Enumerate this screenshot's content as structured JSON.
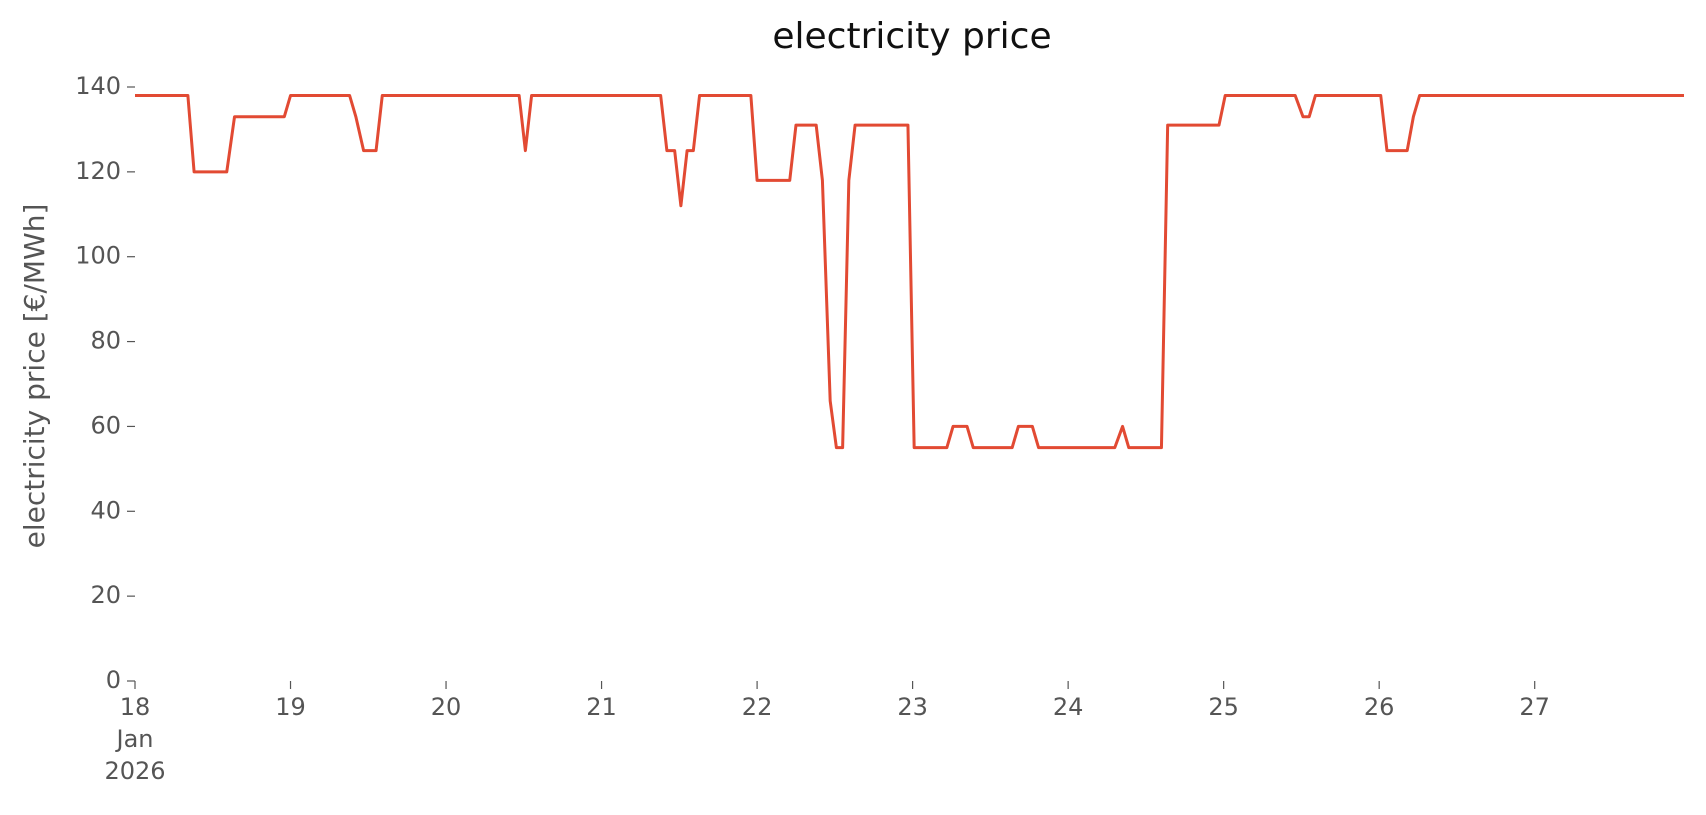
{
  "chart_data": {
    "type": "line",
    "title": "electricity price",
    "y_label": "electricity price [€/MWh]",
    "x": [
      18.0,
      18.34,
      18.38,
      18.59,
      18.64,
      18.96,
      19.0,
      19.38,
      19.42,
      19.47,
      19.55,
      19.59,
      20.47,
      20.51,
      20.55,
      21.38,
      21.42,
      21.47,
      21.51,
      21.55,
      21.59,
      21.63,
      21.96,
      22.0,
      22.21,
      22.25,
      22.38,
      22.42,
      22.47,
      22.51,
      22.55,
      22.59,
      22.63,
      22.97,
      23.01,
      23.22,
      23.26,
      23.35,
      23.39,
      23.64,
      23.68,
      23.77,
      23.81,
      24.3,
      24.35,
      24.39,
      24.6,
      24.64,
      24.97,
      25.01,
      25.46,
      25.51,
      25.55,
      25.59,
      26.01,
      26.05,
      26.18,
      26.22,
      26.26,
      27.96
    ],
    "series": [
      {
        "color": "#e24a33",
        "values": [
          138,
          138,
          120,
          120,
          133,
          133,
          138,
          138,
          133,
          125,
          125,
          138,
          138,
          125,
          138,
          138,
          125,
          125,
          112,
          125,
          125,
          138,
          138,
          118,
          118,
          131,
          131,
          118,
          66,
          55,
          55,
          118,
          131,
          131,
          55,
          55,
          60,
          60,
          55,
          55,
          60,
          60,
          55,
          55,
          60,
          55,
          55,
          131,
          131,
          138,
          138,
          133,
          133,
          138,
          138,
          125,
          125,
          133,
          138,
          138
        ]
      }
    ],
    "xlim": [
      18,
      27.96
    ],
    "xticks": [
      {
        "value": 18,
        "label": "18\nJan\n2026"
      },
      19,
      20,
      21,
      22,
      23,
      24,
      25,
      26,
      27
    ],
    "ylim": [
      0,
      140
    ],
    "yticks": [
      0,
      20,
      40,
      60,
      80,
      100,
      120,
      140
    ]
  }
}
